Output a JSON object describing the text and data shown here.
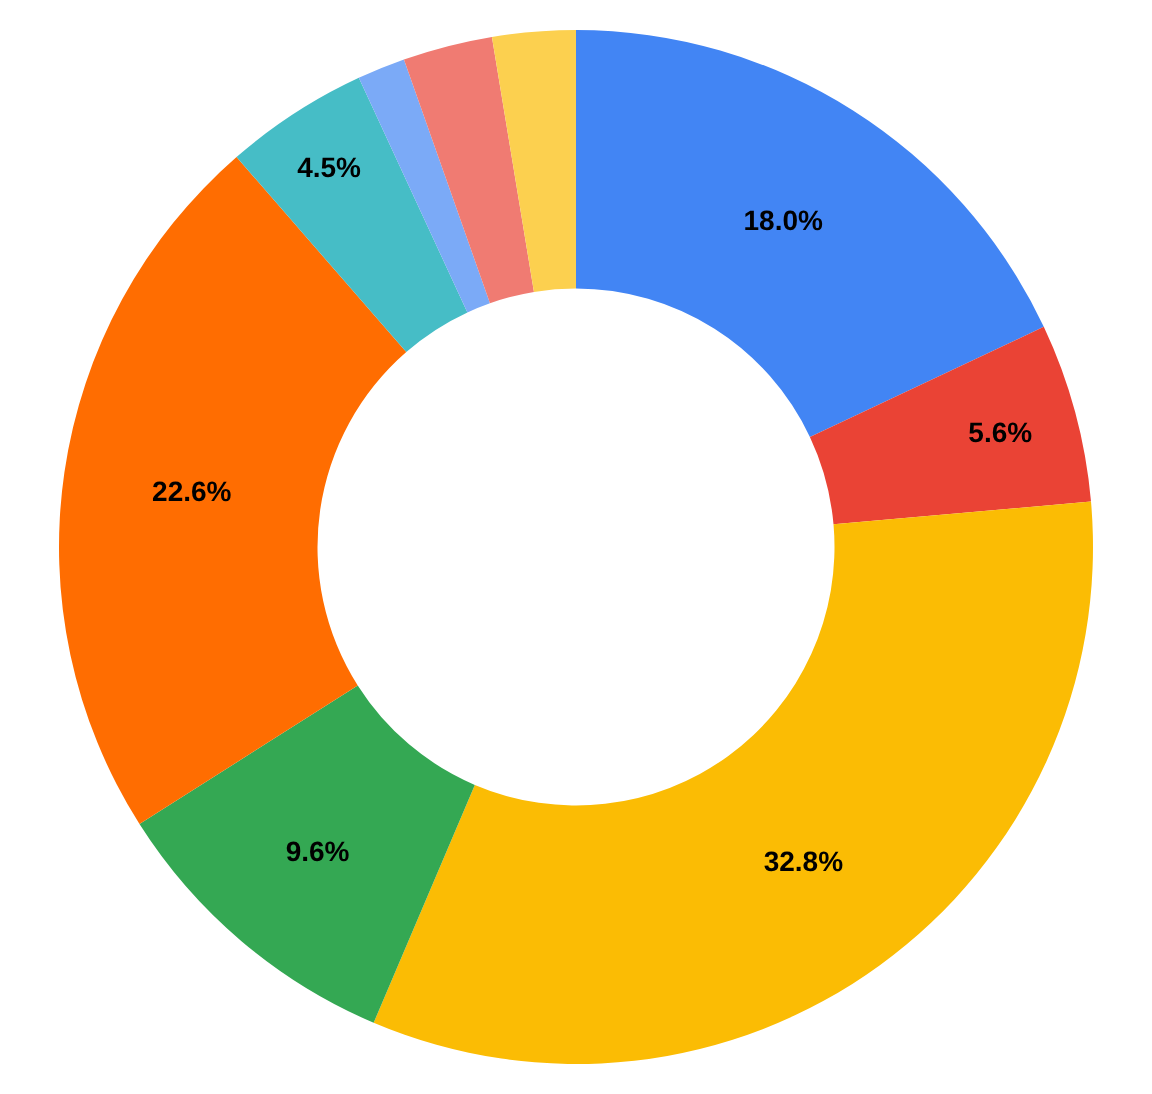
{
  "chart_data": {
    "type": "donut",
    "categories": [
      null,
      null,
      null,
      null,
      null,
      null,
      null,
      null,
      null
    ],
    "values": [
      18.0,
      5.6,
      32.8,
      9.6,
      22.6,
      4.5,
      1.5,
      2.8,
      2.6
    ],
    "colors": [
      "#4285f4",
      "#ea4335",
      "#fbbc04",
      "#34a853",
      "#ff6d01",
      "#46bdc6",
      "#7baaf7",
      "#f07b72",
      "#fcd04f"
    ],
    "value_labels": [
      "18.0%",
      "5.6%",
      "32.8%",
      "9.6%",
      "22.6%",
      "4.5%",
      null,
      null,
      null
    ],
    "legend": false
  }
}
